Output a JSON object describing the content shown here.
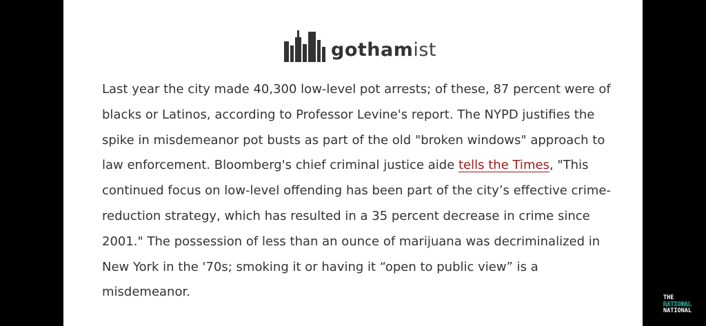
{
  "logo": {
    "name_bold": "gotham",
    "name_light": "ist"
  },
  "article": {
    "lines": [
      "Last year the city made 40,300 low-level pot arrests; of these, 87 percent were of",
      "blacks or Latinos, according to Professor Levine's report. The NYPD justifies the",
      "spike in misdemeanor pot busts as part of the old \"broken windows\" approach to",
      {
        "before": "law enforcement. Bloomberg's chief criminal justice aide ",
        "link": "tells the Times",
        "after": ", \"This"
      },
      "continued focus on low-level offending has been part of the city’s effective crime-",
      "reduction strategy, which has resulted in a 35 percent decrease in crime since",
      "2001.\" The possession of less than an ounce of marijuana was decriminalized in",
      "New York in the '70s; smoking it or having it “open to public view” is a",
      "misdemeanor."
    ]
  },
  "watermark": {
    "line1": "THE",
    "line2": "RATIONAL",
    "line3": "NATIONAL"
  }
}
